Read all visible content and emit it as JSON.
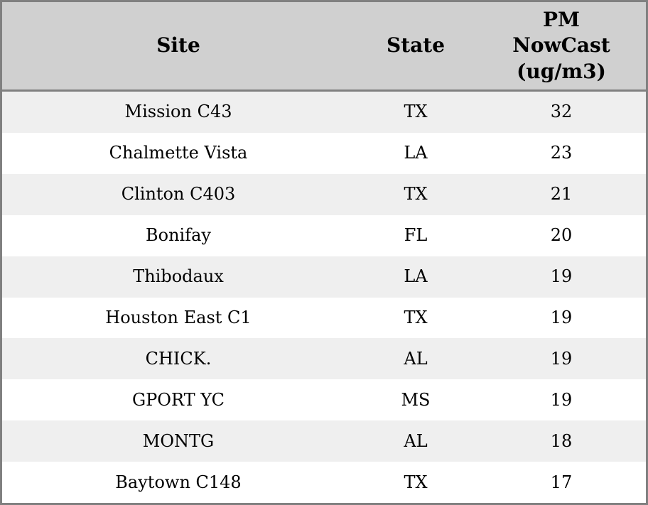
{
  "chart_data": {
    "type": "table",
    "title": "",
    "columns": [
      "Site",
      "State",
      "PM NowCast (ug/m3)"
    ],
    "rows": [
      [
        "Mission C43",
        "TX",
        32
      ],
      [
        "Chalmette Vista",
        "LA",
        23
      ],
      [
        "Clinton C403",
        "TX",
        21
      ],
      [
        "Bonifay",
        "FL",
        20
      ],
      [
        "Thibodaux",
        "LA",
        19
      ],
      [
        "Houston East C1",
        "TX",
        19
      ],
      [
        "CHICK.",
        "AL",
        19
      ],
      [
        "GPORT YC",
        "MS",
        19
      ],
      [
        "MONTG",
        "AL",
        18
      ],
      [
        "Baytown C148",
        "TX",
        17
      ]
    ],
    "layout": {
      "legend": "none",
      "grid": "off",
      "row_striping": "alternate"
    },
    "colors": {
      "header_bg": "#d0d0d0",
      "row_alt_bg": "#efefef",
      "row_bg": "#ffffff",
      "border": "#808080",
      "text": "#000000"
    }
  }
}
